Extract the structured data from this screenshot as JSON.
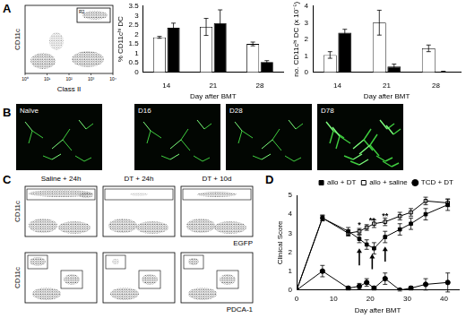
{
  "panel_labels": [
    "A",
    "B",
    "C",
    "D"
  ],
  "flow_plot_A": {
    "y_label": "CD11c",
    "x_label": "Class II",
    "gate": "R2",
    "xticks": [
      "10⁰",
      "10¹",
      "10²",
      "10³",
      "10⁴"
    ]
  },
  "images_B": [
    "Naïve",
    "D16",
    "D28",
    "D78"
  ],
  "flow_plots_C": {
    "column_titles": [
      "Saline + 24h",
      "DT + 24h",
      "DT + 10d"
    ],
    "y_label": "CD11c",
    "x_labels": [
      "EGFP",
      "PDCA-1"
    ]
  },
  "chart_data": [
    {
      "type": "bar",
      "categories": [
        14,
        21,
        28
      ],
      "x_label": "Day after BMT",
      "y_label": "% CD11cʰⁱ DC",
      "ylim": [
        0,
        3.5
      ],
      "yticks": [
        0,
        0.5,
        1,
        1.5,
        2,
        2.5,
        3,
        3.5
      ],
      "grid": false,
      "series": [
        {
          "color": "#ffffff",
          "values": [
            1.85,
            2.4,
            1.5
          ],
          "errors": [
            0.05,
            0.45,
            0.1
          ]
        },
        {
          "color": "#000000",
          "values": [
            2.35,
            2.6,
            0.55
          ],
          "errors": [
            0.25,
            0.7,
            0.07
          ]
        }
      ]
    },
    {
      "type": "bar",
      "categories": [
        14,
        21,
        28
      ],
      "x_label": "Day after BMT",
      "y_label": "no. CD11cʰⁱ DC (x 10⁻⁵)",
      "ylim": [
        0,
        4
      ],
      "yticks": [
        0,
        1,
        2,
        3,
        4
      ],
      "grid": false,
      "series": [
        {
          "color": "#ffffff",
          "values": [
            1.05,
            3.0,
            1.45
          ],
          "errors": [
            0.2,
            0.75,
            0.2
          ]
        },
        {
          "color": "#000000",
          "values": [
            2.4,
            0.35,
            0.05
          ],
          "errors": [
            0.2,
            0.15,
            0.02
          ]
        }
      ]
    },
    {
      "type": "line",
      "x": [
        0,
        7,
        14,
        17,
        19,
        21,
        24,
        28,
        31,
        35,
        41
      ],
      "x_label": "Day after BMT",
      "y_label": "Clinical Score",
      "xlim": [
        0,
        44
      ],
      "xticks": [
        0,
        10,
        20,
        30,
        40
      ],
      "ylim": [
        0,
        5
      ],
      "yticks": [
        0,
        1,
        2,
        3,
        4,
        5
      ],
      "grid": false,
      "legend": "top",
      "series": [
        {
          "name": "allo + DT",
          "color": "#000000",
          "marker": "filled_square",
          "values": [
            0,
            3.8,
            3.1,
            2.7,
            2.4,
            2.2,
            2.8,
            3.2,
            3.5,
            4.0,
            4.5
          ],
          "errors": [
            0,
            0.15,
            0.2,
            0.2,
            0.25,
            0.3,
            0.3,
            0.3,
            0.3,
            0.3,
            0.3
          ]
        },
        {
          "name": "allo + saline",
          "color": "#000000",
          "marker": "open_square",
          "values": [
            0,
            3.8,
            3.0,
            3.1,
            3.3,
            3.5,
            3.6,
            3.9,
            4.1,
            4.7,
            4.6
          ],
          "errors": [
            0,
            0.15,
            0.15,
            0.15,
            0.15,
            0.2,
            0.2,
            0.2,
            0.2,
            0.2,
            0.2
          ]
        },
        {
          "name": "TCD + DT",
          "color": "#000000",
          "marker": "filled_circle",
          "values": [
            0,
            1.0,
            0.1,
            0.2,
            0.4,
            0.1,
            0.6,
            0.0,
            0.1,
            0.3,
            0.4
          ],
          "errors": [
            0,
            0.3,
            0.1,
            0.15,
            0.2,
            0.1,
            0.3,
            0.05,
            0.1,
            0.3,
            0.5
          ]
        }
      ],
      "annotations": [
        {
          "text": "*",
          "x": 17,
          "y": 3.4
        },
        {
          "text": "**",
          "x": 20.5,
          "y": 3.65
        },
        {
          "text": "**",
          "x": 24,
          "y": 3.9
        }
      ],
      "arrows": [
        {
          "x": 17,
          "y_from": 1.3,
          "y_to": 2.2
        },
        {
          "x": 20.5,
          "y_from": 1.1,
          "y_to": 1.9
        },
        {
          "x": 24,
          "y_from": 1.5,
          "y_to": 2.3
        }
      ]
    }
  ]
}
